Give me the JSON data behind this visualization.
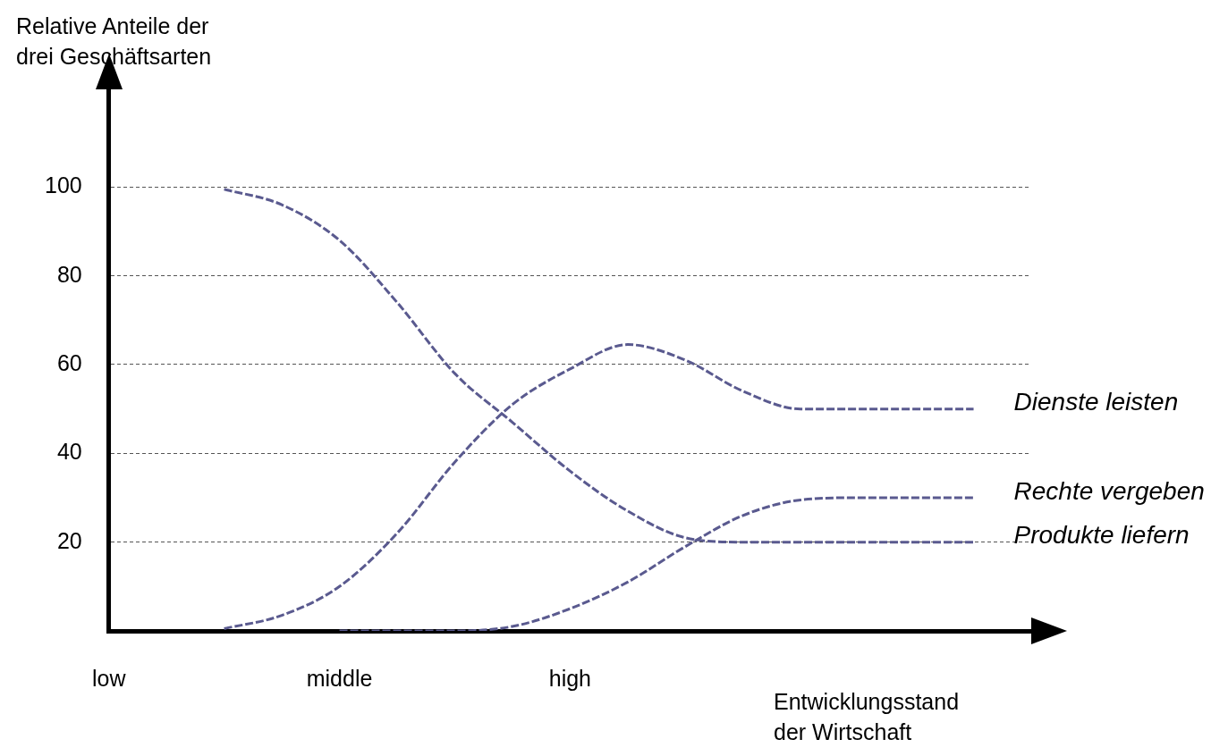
{
  "chart_data": {
    "type": "line",
    "ylabel": "Relative Anteile der drei Geschäftsarten",
    "xlabel": "Entwicklungsstand der Wirtschaft",
    "categories": [
      "low",
      null,
      null,
      null,
      "middle",
      null,
      null,
      null,
      "high",
      null,
      null,
      null,
      null,
      null,
      null,
      null,
      null
    ],
    "ylim": [
      0,
      122
    ],
    "yticks": [
      {
        "value": 0,
        "label": null
      },
      20,
      40,
      60,
      80,
      100
    ],
    "grid": "y",
    "line_style": "dashed",
    "marker": "none",
    "legend": false,
    "series": [
      {
        "name": "Dienste leisten",
        "color": "#5a5a8f",
        "values": [
          null,
          null,
          0.5,
          3.5,
          10,
          22,
          38,
          51,
          59,
          64.5,
          61,
          54,
          50,
          50,
          50,
          50,
          null
        ]
      },
      {
        "name": "Rechte vergeben",
        "color": "#5a5a8f",
        "values": [
          null,
          null,
          null,
          null,
          0,
          0,
          0,
          1,
          5,
          11,
          19,
          26,
          29.5,
          30,
          30,
          30,
          null
        ]
      },
      {
        "name": "Produkte liefern",
        "color": "#5a5a8f",
        "values": [
          null,
          null,
          99.5,
          96,
          88,
          74,
          58,
          47,
          36,
          27,
          21,
          20,
          20,
          20,
          20,
          20,
          null
        ]
      }
    ]
  }
}
